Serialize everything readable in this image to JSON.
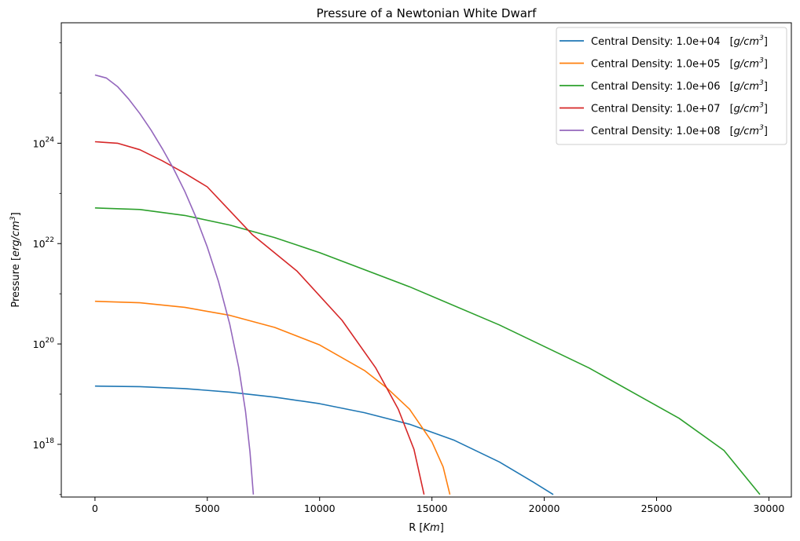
{
  "chart_data": {
    "type": "line",
    "title": "Pressure of a Newtonian White Dwarf",
    "xlabel": "R",
    "xlabel_unit": "Km",
    "ylabel": "Pressure",
    "ylabel_unit": "erg/cm",
    "ylabel_unit_sup": "3",
    "yscale": "log",
    "xlim": [
      -1500,
      31000
    ],
    "ylim_exponent": [
      16.95,
      26.4
    ],
    "grid": false,
    "legend_position": "top-right",
    "x_ticks": [
      0,
      5000,
      10000,
      15000,
      20000,
      25000,
      30000
    ],
    "y_ticks": [
      {
        "base": "10",
        "exp": "18"
      },
      {
        "base": "10",
        "exp": "20"
      },
      {
        "base": "10",
        "exp": "22"
      },
      {
        "base": "10",
        "exp": "24"
      }
    ],
    "y_tick_exponents": [
      18,
      20,
      22,
      24
    ],
    "legend_unit": "g/cm",
    "legend_unit_sup": "3",
    "series": [
      {
        "name": "Central Density: 1.0e+04",
        "color": "#1f77b4",
        "x": [
          0,
          2000,
          4000,
          6000,
          8000,
          10000,
          12000,
          14000,
          16000,
          18000,
          19500,
          20400
        ],
        "log10_y": [
          19.16,
          19.15,
          19.11,
          19.04,
          18.94,
          18.81,
          18.63,
          18.4,
          18.08,
          17.65,
          17.25,
          17.0
        ]
      },
      {
        "name": "Central Density: 1.0e+05",
        "color": "#ff7f0e",
        "x": [
          0,
          2000,
          4000,
          6000,
          8000,
          10000,
          12000,
          13000,
          14000,
          15000,
          15500,
          15800
        ],
        "log10_y": [
          20.85,
          20.82,
          20.73,
          20.57,
          20.33,
          19.98,
          19.47,
          19.12,
          18.7,
          18.05,
          17.55,
          17.0
        ]
      },
      {
        "name": "Central Density: 1.0e+06",
        "color": "#2ca02c",
        "x": [
          0,
          2000,
          4000,
          6000,
          8000,
          10000,
          14000,
          18000,
          22000,
          26000,
          28000,
          29600
        ],
        "log10_y": [
          22.71,
          22.68,
          22.56,
          22.37,
          22.12,
          21.82,
          21.14,
          20.38,
          19.52,
          18.52,
          17.88,
          17.0
        ]
      },
      {
        "name": "Central Density: 1.0e+07",
        "color": "#d62728",
        "x": [
          0,
          1000,
          2000,
          3000,
          4000,
          5000,
          7000,
          9000,
          11000,
          12500,
          13500,
          14200,
          14650
        ],
        "log10_y": [
          24.03,
          24.0,
          23.87,
          23.65,
          23.4,
          23.13,
          22.18,
          21.45,
          20.47,
          19.52,
          18.7,
          17.9,
          17.0
        ]
      },
      {
        "name": "Central Density: 1.0e+08",
        "color": "#9467bd",
        "x": [
          0,
          500,
          1000,
          1500,
          2000,
          2500,
          3000,
          3500,
          4000,
          4500,
          5000,
          5500,
          6000,
          6400,
          6700,
          6900,
          7050
        ],
        "log10_y": [
          25.36,
          25.3,
          25.13,
          24.88,
          24.59,
          24.26,
          23.89,
          23.49,
          23.04,
          22.52,
          21.93,
          21.24,
          20.39,
          19.53,
          18.66,
          17.85,
          17.0
        ]
      }
    ]
  }
}
